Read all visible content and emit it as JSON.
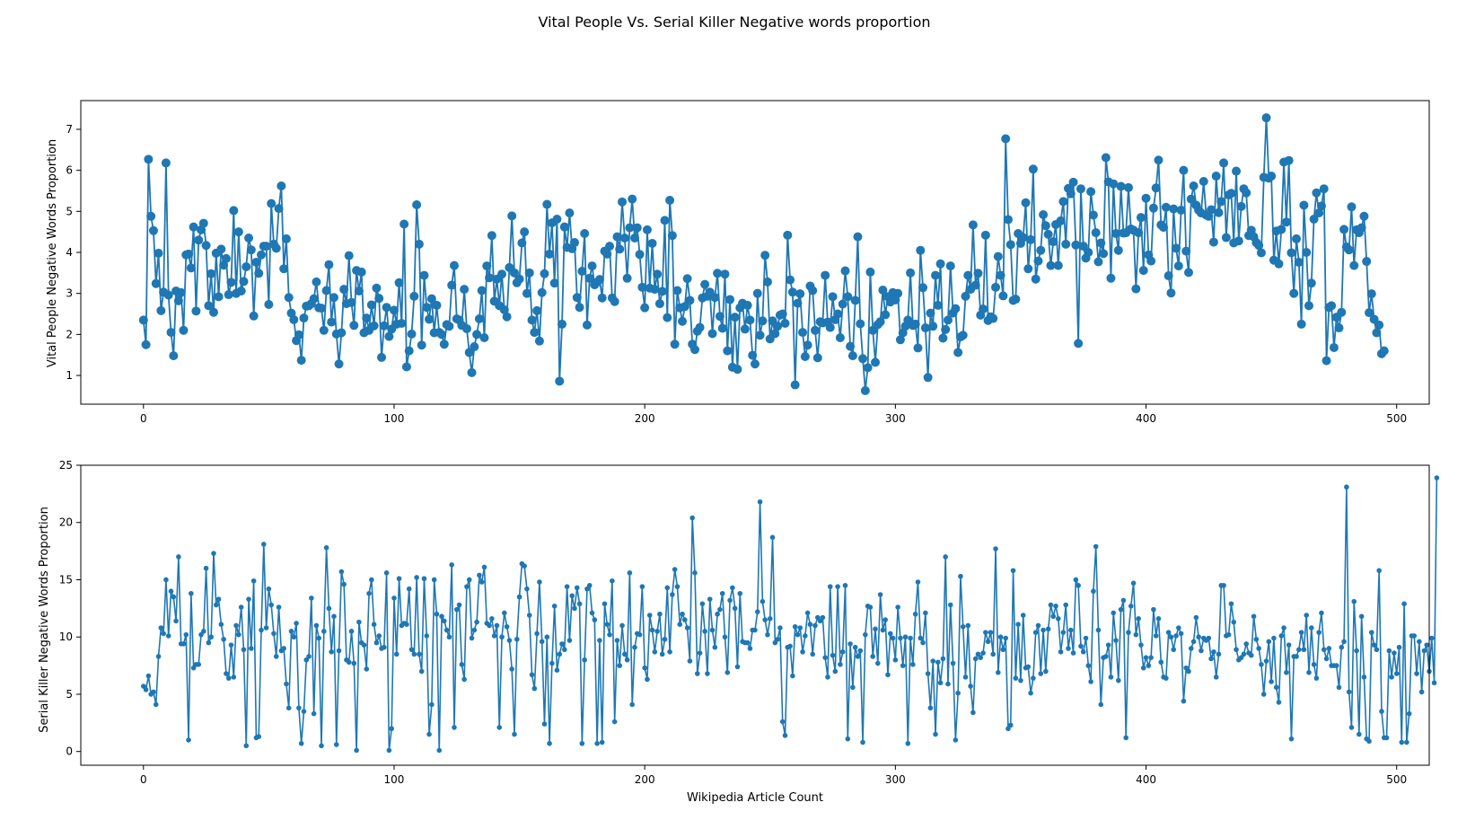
{
  "figure": {
    "title": "Vital People Vs. Serial Killer Negative words proportion"
  },
  "chart_data": [
    {
      "type": "line",
      "ylabel": "Vital People Negative Words Proportion",
      "xlabel": "",
      "xlim": [
        -25,
        513
      ],
      "ylim": [
        0.3,
        7.7
      ],
      "xticks": [
        0,
        100,
        200,
        300,
        400,
        500
      ],
      "yticks": [
        1,
        2,
        3,
        4,
        5,
        6,
        7
      ],
      "color": "#1f77b4",
      "marker": "circle-large",
      "series": [
        {
          "values": [
            2.35,
            1.75,
            6.27,
            4.88,
            4.53,
            3.24,
            3.98,
            2.58,
            3.03,
            6.18,
            2.96,
            2.05,
            1.48,
            3.06,
            2.82,
            3.02,
            2.1,
            3.94,
            3.96,
            3.62,
            4.62,
            2.57,
            4.3,
            4.55,
            4.71,
            4.17,
            2.7,
            3.48,
            2.54,
            3.98,
            2.92,
            4.08,
            3.69,
            3.85,
            2.97,
            3.27,
            5.02,
            3.0,
            4.5,
            3.06,
            3.29,
            3.65,
            4.35,
            4.06,
            2.45,
            3.76,
            3.49,
            3.94,
            4.15,
            4.15,
            2.73,
            5.19,
            4.2,
            4.1,
            5.07,
            5.62,
            3.6,
            4.33,
            2.9,
            2.52,
            2.36,
            1.85,
            1.99,
            1.37,
            2.4,
            2.69,
            2.7,
            2.75,
            2.87,
            3.28,
            2.65,
            2.64,
            2.1,
            3.07,
            3.7,
            2.3,
            2.9,
            2.01,
            1.28,
            2.04,
            3.1,
            2.75,
            3.92,
            2.78,
            2.22,
            3.56,
            3.06,
            3.52,
            2.04,
            2.4,
            2.1,
            2.72,
            2.21,
            3.13,
            2.88,
            1.44,
            2.21,
            2.66,
            1.95,
            2.13,
            2.59,
            2.25,
            3.26,
            2.27,
            4.69,
            1.21,
            1.6,
            2.01,
            2.93,
            5.16,
            4.2,
            1.74,
            3.44,
            2.66,
            2.37,
            2.87,
            2.04,
            2.71,
            2.05,
            2.0,
            1.76,
            2.24,
            2.2,
            3.2,
            3.68,
            2.38,
            2.35,
            2.22,
            3.1,
            2.14,
            1.56,
            1.07,
            1.7,
            2.0,
            2.38,
            3.07,
            1.92,
            3.67,
            3.38,
            4.41,
            2.81,
            3.35,
            2.7,
            3.47,
            2.6,
            2.43,
            3.63,
            4.89,
            3.5,
            3.26,
            3.35,
            4.23,
            4.5,
            3.0,
            3.5,
            2.35,
            2.05,
            2.58,
            1.84,
            3.02,
            3.48,
            5.17,
            3.96,
            4.72,
            3.25,
            4.81,
            0.86,
            2.25,
            4.62,
            4.12,
            4.96,
            4.09,
            4.24,
            2.9,
            2.66,
            3.54,
            4.46,
            2.23,
            3.37,
            3.67,
            3.21,
            3.27,
            3.34,
            2.89,
            4.03,
            3.96,
            4.15,
            2.89,
            2.8,
            4.38,
            4.08,
            5.23,
            4.35,
            3.37,
            4.6,
            5.3,
            4.35,
            4.6,
            3.95,
            3.15,
            2.65,
            4.55,
            3.13,
            4.22,
            3.1,
            3.47,
            2.75,
            3.05,
            4.78,
            2.41,
            5.27,
            4.41,
            1.76,
            3.07,
            2.65,
            2.32,
            2.68,
            3.36,
            2.83,
            1.76,
            1.63,
            2.08,
            2.17,
            2.89,
            3.22,
            2.93,
            3.03,
            2.02,
            2.9,
            3.49,
            2.44,
            2.15,
            3.47,
            1.6,
            2.85,
            1.2,
            2.42,
            1.15,
            2.65,
            2.76,
            2.13,
            2.71,
            2.35,
            1.49,
            1.28,
            3.0,
            1.98,
            2.33,
            3.93,
            3.28,
            1.89,
            2.33,
            2.02,
            2.2,
            2.47,
            2.5,
            2.27,
            4.42,
            3.33,
            3.03,
            0.77,
            2.76,
            2.99,
            2.05,
            1.46,
            1.74,
            3.18,
            3.07,
            2.1,
            1.43,
            2.31,
            2.28,
            3.44,
            2.3,
            2.17,
            2.92,
            2.36,
            2.5,
            1.92,
            2.74,
            3.55,
            2.92,
            1.71,
            1.48,
            2.83,
            4.38,
            2.26,
            1.41,
            0.63,
            1.19,
            3.52,
            2.1,
            1.32,
            2.24,
            2.31,
            3.08,
            2.48,
            2.92,
            2.79,
            3.02,
            2.84,
            3.0,
            1.87,
            2.04,
            2.2,
            2.35,
            3.5,
            2.22,
            2.25,
            1.67,
            4.05,
            3.14,
            2.16,
            0.95,
            2.52,
            2.2,
            3.44,
            2.71,
            3.72,
            1.91,
            2.12,
            2.35,
            3.67,
            2.52,
            2.63,
            1.56,
            1.94,
            1.98,
            2.93,
            3.44,
            3.1,
            4.67,
            3.2,
            3.49,
            2.47,
            2.62,
            4.42,
            2.34,
            2.43,
            2.39,
            3.15,
            3.9,
            3.44,
            2.94,
            6.77,
            4.8,
            4.19,
            2.83,
            2.86,
            4.46,
            4.22,
            4.36,
            5.21,
            3.6,
            4.31,
            6.03,
            3.35,
            3.79,
            4.05,
            4.92,
            4.65,
            4.44,
            3.68,
            4.26,
            4.68,
            3.68,
            4.77,
            5.24,
            4.2,
            5.56,
            5.43,
            5.71,
            4.18,
            1.78,
            5.55,
            4.15,
            3.86,
            4.0,
            5.48,
            4.91,
            4.48,
            3.77,
            4.23,
            3.97,
            6.31,
            5.72,
            3.37,
            5.67,
            4.46,
            4.05,
            5.61,
            4.47,
            4.48,
            5.58,
            4.57,
            4.54,
            3.11,
            4.48,
            4.85,
            3.56,
            5.32,
            3.94,
            3.79,
            5.08,
            5.57,
            6.25,
            4.67,
            4.61,
            5.1,
            3.43,
            3.01,
            5.06,
            4.1,
            3.67,
            5.03,
            6.0,
            4.03,
            3.51,
            5.3,
            5.62,
            5.15,
            5.03,
            4.96,
            5.73,
            4.91,
            4.88,
            5.04,
            4.25,
            5.86,
            4.97,
            5.24,
            6.18,
            4.36,
            5.4,
            5.44,
            4.23,
            5.98,
            4.28,
            5.12,
            5.55,
            5.45,
            4.41,
            4.54,
            4.38,
            4.24,
            4.17,
            3.99,
            5.83,
            7.28,
            5.81,
            5.86,
            3.81,
            4.52,
            3.72,
            4.56,
            6.2,
            4.74,
            6.24,
            3.99,
            3.0,
            4.33,
            3.76,
            2.25,
            5.15,
            4.0,
            2.7,
            3.25,
            4.81,
            5.45,
            4.96,
            5.13,
            5.55,
            1.36,
            2.66,
            2.7,
            1.68,
            2.42,
            2.16,
            2.54,
            4.56,
            4.13,
            4.06,
            5.11,
            3.68,
            4.55,
            4.48,
            4.6,
            4.88,
            3.78,
            2.53,
            2.99,
            2.37,
            2.04,
            2.23,
            1.53,
            1.6
          ]
        }
      ]
    },
    {
      "type": "line",
      "ylabel": "Serial Killer Negative Words Proportion",
      "xlabel": "Wikipedia Article Count",
      "xlim": [
        -25,
        513
      ],
      "ylim": [
        -1.2,
        25
      ],
      "xticks": [
        0,
        100,
        200,
        300,
        400,
        500
      ],
      "yticks": [
        0,
        5,
        10,
        15,
        20,
        25
      ],
      "color": "#1f77b4",
      "marker": "circle-small",
      "series": [
        {
          "values": [
            5.7,
            5.4,
            6.6,
            5.0,
            5.2,
            4.1,
            8.3,
            10.8,
            10.3,
            15.0,
            10.1,
            14.0,
            13.5,
            11.4,
            17.0,
            9.4,
            9.4,
            10.2,
            1.0,
            13.8,
            7.3,
            7.6,
            7.6,
            10.2,
            10.5,
            16.0,
            9.5,
            10.0,
            17.3,
            12.8,
            13.3,
            11.1,
            9.8,
            6.8,
            6.4,
            9.3,
            6.5,
            11.0,
            10.2,
            12.6,
            8.9,
            0.5,
            13.3,
            9.0,
            14.9,
            1.2,
            1.3,
            10.6,
            18.1,
            10.8,
            14.2,
            12.8,
            10.3,
            8.3,
            12.6,
            8.8,
            9.0,
            5.9,
            3.8,
            10.5,
            10.0,
            11.2,
            3.8,
            0.7,
            3.5,
            8.0,
            8.3,
            13.4,
            3.3,
            11.0,
            9.9,
            0.5,
            10.5,
            17.8,
            12.5,
            8.7,
            11.8,
            0.6,
            8.8,
            15.7,
            14.6,
            8.0,
            7.8,
            10.5,
            7.7,
            0.1,
            11.3,
            9.5,
            9.3,
            7.2,
            13.8,
            15.0,
            11.1,
            9.5,
            10.1,
            9.0,
            9.1,
            15.6,
            0.1,
            2.0,
            13.4,
            8.5,
            15.1,
            11.0,
            11.2,
            11.1,
            14.2,
            8.9,
            8.5,
            15.2,
            8.5,
            7.0,
            15.1,
            10.1,
            1.5,
            4.1,
            15.0,
            12.0,
            0.1,
            11.8,
            11.4,
            10.6,
            10.0,
            16.3,
            2.1,
            12.4,
            12.8,
            7.6,
            6.3,
            14.4,
            15.0,
            9.9,
            10.6,
            11.3,
            15.4,
            14.8,
            16.1,
            11.2,
            11.0,
            11.6,
            10.1,
            11.0,
            2.1,
            10.0,
            12.1,
            10.9,
            9.7,
            7.2,
            1.5,
            9.8,
            13.5,
            16.4,
            16.2,
            14.2,
            11.9,
            6.7,
            5.5,
            10.3,
            14.8,
            9.6,
            2.4,
            10.0,
            0.7,
            7.7,
            12.7,
            7.1,
            8.5,
            9.4,
            8.9,
            14.4,
            9.7,
            13.6,
            12.5,
            14.3,
            12.9,
            0.7,
            8.0,
            14.2,
            14.5,
            12.1,
            11.5,
            0.7,
            9.7,
            0.8,
            12.9,
            11.1,
            10.2,
            14.9,
            2.6,
            9.7,
            7.5,
            11.0,
            8.5,
            8.0,
            15.6,
            4.1,
            9.1,
            10.3,
            10.2,
            14.4,
            7.3,
            6.3,
            11.9,
            10.6,
            8.7,
            10.5,
            12.0,
            8.5,
            9.8,
            14.3,
            8.7,
            13.7,
            15.9,
            14.4,
            11.1,
            12.0,
            11.5,
            10.8,
            7.9,
            20.4,
            15.6,
            6.8,
            8.6,
            12.9,
            10.5,
            6.8,
            13.3,
            10.6,
            9.1,
            12.0,
            12.4,
            13.8,
            10.0,
            6.9,
            13.2,
            14.3,
            12.5,
            7.4,
            13.8,
            9.6,
            9.5,
            9.5,
            9.0,
            10.6,
            10.6,
            12.2,
            21.8,
            13.1,
            11.5,
            10.2,
            11.6,
            18.7,
            9.5,
            9.8,
            10.8,
            2.6,
            1.4,
            9.1,
            9.2,
            6.6,
            10.9,
            10.2,
            10.8,
            8.7,
            10.1,
            12.1,
            11.1,
            8.5,
            11.0,
            11.7,
            11.4,
            11.7,
            8.2,
            6.5,
            14.4,
            8.4,
            7.0,
            14.4,
            7.6,
            8.7,
            14.5,
            1.1,
            9.4,
            5.6,
            9.1,
            8.3,
            8.8,
            0.8,
            10.2,
            12.7,
            12.6,
            8.3,
            10.7,
            7.7,
            13.7,
            10.6,
            11.5,
            6.7,
            10.3,
            9.9,
            8.0,
            12.6,
            9.9,
            7.5,
            10.0,
            0.7,
            9.9,
            7.6,
            12.0,
            14.8,
            9.9,
            9.5,
            12.1,
            6.8,
            3.8,
            7.9,
            1.5,
            7.8,
            6.0,
            8.1,
            17.0,
            5.9,
            12.8,
            7.7,
            1.0,
            5.1,
            15.3,
            10.9,
            6.5,
            11.0,
            5.7,
            3.4,
            8.1,
            8.5,
            8.2,
            8.6,
            10.4,
            9.6,
            10.4,
            8.5,
            17.7,
            6.9,
            10.0,
            8.9,
            9.9,
            2.0,
            2.3,
            15.8,
            6.4,
            11.1,
            6.2,
            11.9,
            7.3,
            7.4,
            5.1,
            6.4,
            10.4,
            11.0,
            6.8,
            10.6,
            7.0,
            10.7,
            12.8,
            11.8,
            12.7,
            11.6,
            8.7,
            10.4,
            12.8,
            9.0,
            10.6,
            8.6,
            15.0,
            14.5,
            9.2,
            8.7,
            9.9,
            7.5,
            6.1,
            14.0,
            17.9,
            10.6,
            4.1,
            8.2,
            8.3,
            9.3,
            6.5,
            12.1,
            9.7,
            6.2,
            12.4,
            13.2,
            1.2,
            10.4,
            12.7,
            14.7,
            10.2,
            11.6,
            9.3,
            7.3,
            8.2,
            7.5,
            8.2,
            12.4,
            10.1,
            11.6,
            7.8,
            6.5,
            6.4,
            10.4,
            10.0,
            8.9,
            10.1,
            10.8,
            10.3,
            4.4,
            7.3,
            7.0,
            9.0,
            9.6,
            11.7,
            10.0,
            8.8,
            9.9,
            9.7,
            9.9,
            8.1,
            8.7,
            6.5,
            8.5,
            14.5,
            14.5,
            10.1,
            10.2,
            12.9,
            11.3,
            8.9,
            8.0,
            8.2,
            8.5,
            9.4,
            8.6,
            8.4,
            11.8,
            9.8,
            9.0,
            7.6,
            5.0,
            7.9,
            9.6,
            6.1,
            9.9,
            5.6,
            4.3,
            10.1,
            10.8,
            6.9,
            9.3,
            1.1,
            8.3,
            8.3,
            8.9,
            10.4,
            8.9,
            11.9,
            6.9,
            10.8,
            7.6,
            6.4,
            10.4,
            12.1,
            8.9,
            8.1,
            9.0,
            7.5,
            7.5,
            7.5,
            5.6,
            9.1,
            9.6,
            23.1,
            5.2,
            2.1,
            13.1,
            8.8,
            1.5,
            11.8,
            6.5,
            1.1,
            0.9,
            10.4,
            9.3,
            8.9,
            15.8,
            3.5,
            1.2,
            1.2,
            8.8,
            6.5,
            8.6,
            6.8,
            9.1,
            0.8,
            12.9,
            0.8,
            3.3,
            10.1,
            10.1,
            6.8,
            9.6,
            5.2,
            8.8,
            9.3,
            7.0,
            9.9,
            6.0,
            23.9
          ]
        }
      ]
    }
  ]
}
